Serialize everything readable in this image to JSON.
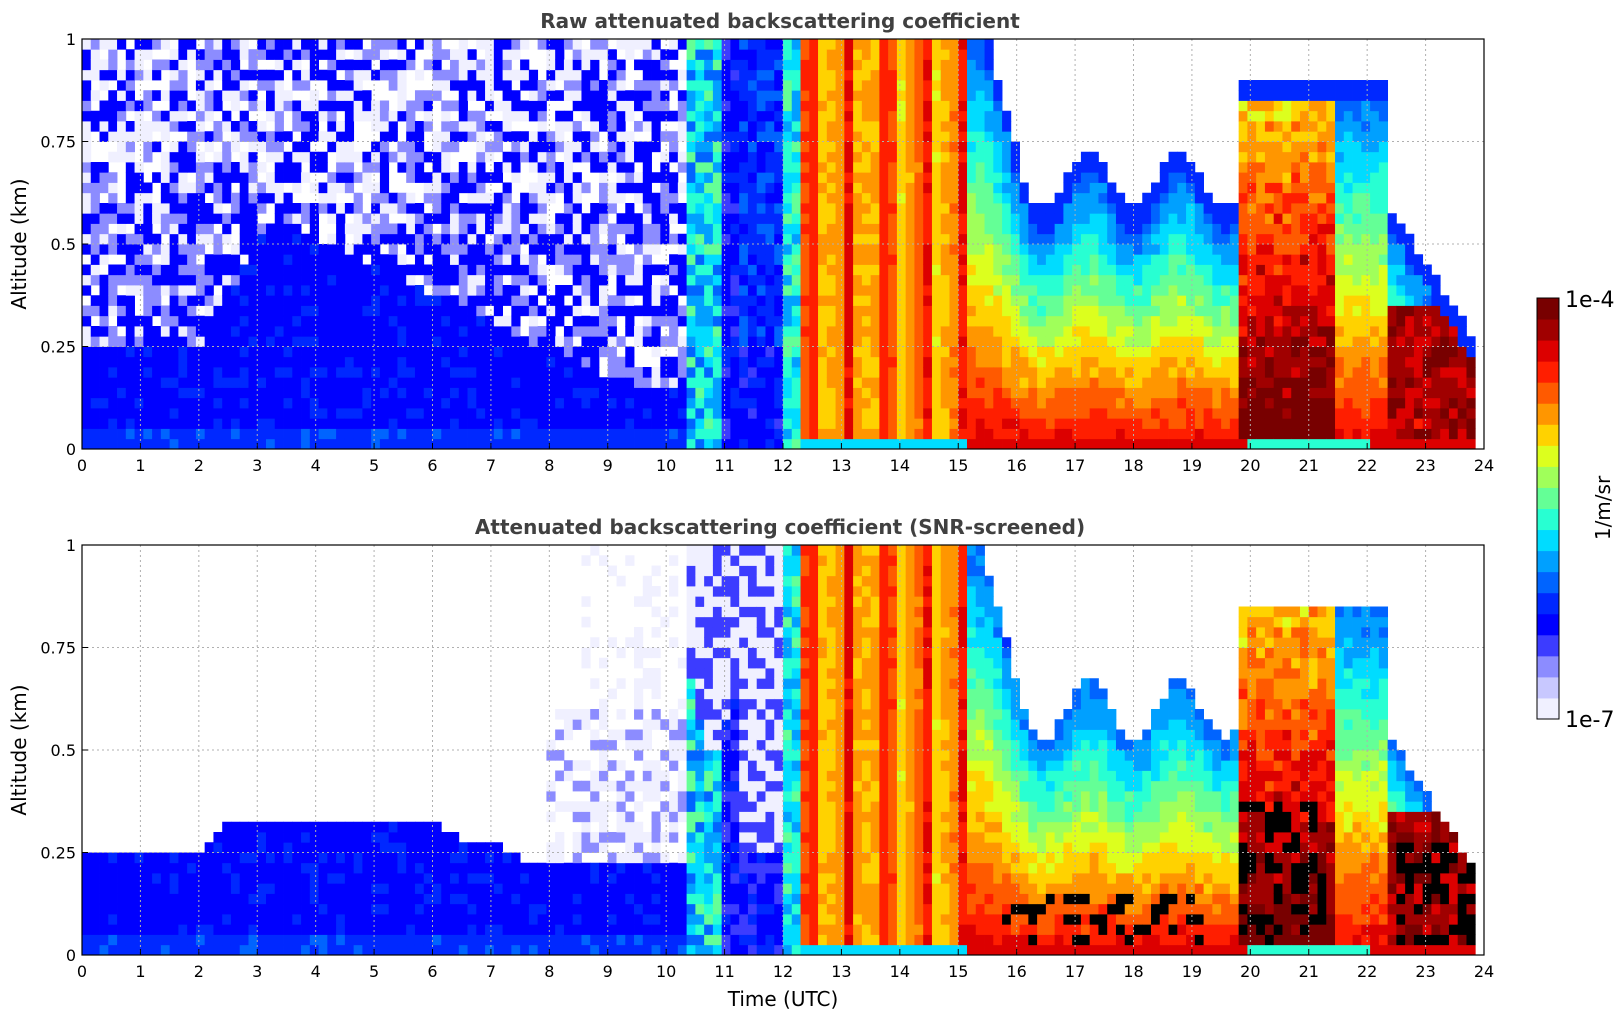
{
  "colors": {
    "colormap": [
      "#f0f0ff",
      "#c8c8ff",
      "#8c8cff",
      "#3c3cff",
      "#0000ff",
      "#0028ff",
      "#0064ff",
      "#00a0ff",
      "#00dcff",
      "#28ffd2",
      "#64ff96",
      "#a0ff5a",
      "#dcff1e",
      "#ffd200",
      "#ff9600",
      "#ff5a00",
      "#ff1e00",
      "#dc0000",
      "#a00000",
      "#780000"
    ],
    "axis": "#000000",
    "grid": "#b0b0b0",
    "title": "#404040"
  },
  "chart_data": [
    {
      "type": "heatmap",
      "title": "Raw attenuated backscattering coefficient",
      "xlabel": "",
      "ylabel": "Altitude (km)",
      "xlim": [
        0,
        24
      ],
      "ylim": [
        0,
        1
      ],
      "x_ticks": [
        "0",
        "1",
        "2",
        "3",
        "4",
        "5",
        "6",
        "7",
        "8",
        "9",
        "10",
        "11",
        "12",
        "13",
        "14",
        "15",
        "16",
        "17",
        "18",
        "19",
        "20",
        "21",
        "22",
        "23",
        "24"
      ],
      "y_ticks": [
        "0",
        "0.25",
        "0.5",
        "0.75",
        "1"
      ],
      "y_tick_values": [
        0,
        0.25,
        0.5,
        0.75,
        1
      ],
      "grid": true,
      "colorbar": {
        "label": "1/m/sr",
        "min_label": "1e-7",
        "max_label": "1e-4",
        "scale": "log"
      }
    },
    {
      "type": "heatmap",
      "title": "Attenuated backscattering coefficient (SNR-screened)",
      "xlabel": "Time (UTC)",
      "ylabel": "Altitude (km)",
      "xlim": [
        0,
        24
      ],
      "ylim": [
        0,
        1
      ],
      "x_ticks": [
        "0",
        "1",
        "2",
        "3",
        "4",
        "5",
        "6",
        "7",
        "8",
        "9",
        "10",
        "11",
        "12",
        "13",
        "14",
        "15",
        "16",
        "17",
        "18",
        "19",
        "20",
        "21",
        "22",
        "23",
        "24"
      ],
      "y_ticks": [
        "0",
        "0.25",
        "0.5",
        "0.75",
        "1"
      ],
      "y_tick_values": [
        0,
        0.25,
        0.5,
        0.75,
        1
      ],
      "grid": true,
      "colorbar": {
        "label": "1/m/sr",
        "min_label": "1e-7",
        "max_label": "1e-4",
        "scale": "log"
      }
    }
  ]
}
